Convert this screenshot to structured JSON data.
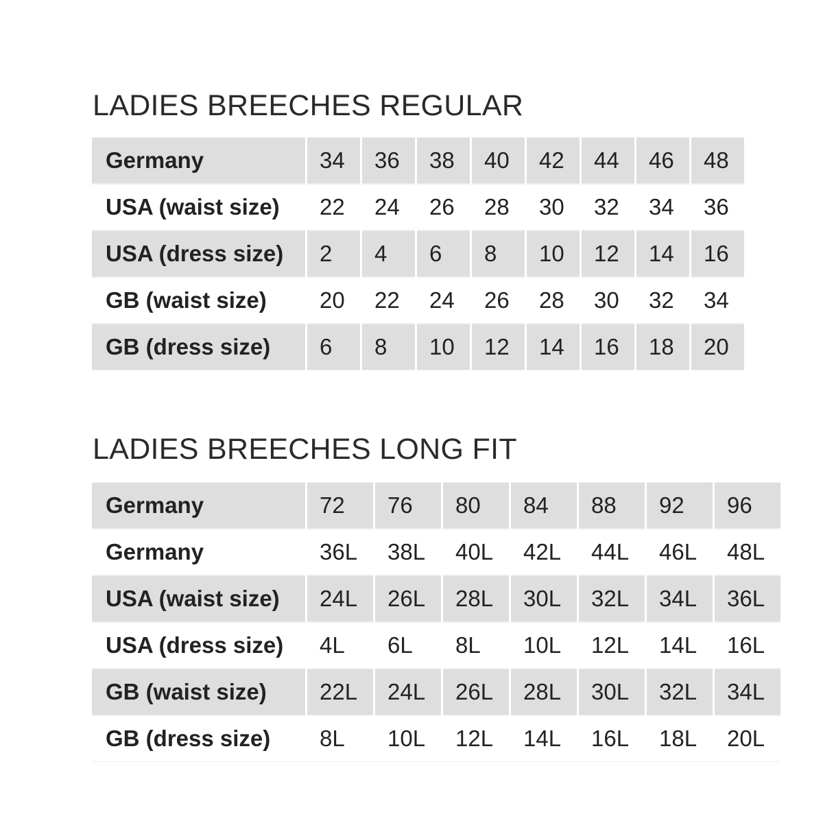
{
  "tables": [
    {
      "title": "LADIES BREECHES REGULAR",
      "rows": [
        {
          "label": "Germany",
          "values": [
            "34",
            "36",
            "38",
            "40",
            "42",
            "44",
            "46",
            "48"
          ]
        },
        {
          "label": "USA (waist size)",
          "values": [
            "22",
            "24",
            "26",
            "28",
            "30",
            "32",
            "34",
            "36"
          ]
        },
        {
          "label": "USA (dress size)",
          "values": [
            "2",
            "4",
            "6",
            "8",
            "10",
            "12",
            "14",
            "16"
          ]
        },
        {
          "label": "GB (waist size)",
          "values": [
            "20",
            "22",
            "24",
            "26",
            "28",
            "30",
            "32",
            "34"
          ]
        },
        {
          "label": "GB (dress size)",
          "values": [
            "6",
            "8",
            "10",
            "12",
            "14",
            "16",
            "18",
            "20"
          ]
        }
      ]
    },
    {
      "title": "LADIES BREECHES LONG FIT",
      "rows": [
        {
          "label": "Germany",
          "values": [
            "72",
            "76",
            "80",
            "84",
            "88",
            "92",
            "96"
          ]
        },
        {
          "label": "Germany",
          "values": [
            "36L",
            "38L",
            "40L",
            "42L",
            "44L",
            "46L",
            "48L"
          ]
        },
        {
          "label": "USA (waist size)",
          "values": [
            "24L",
            "26L",
            "28L",
            "30L",
            "32L",
            "34L",
            "36L"
          ]
        },
        {
          "label": "USA (dress size)",
          "values": [
            "4L",
            "6L",
            "8L",
            "10L",
            "12L",
            "14L",
            "16L"
          ]
        },
        {
          "label": "GB (waist size)",
          "values": [
            "22L",
            "24L",
            "26L",
            "28L",
            "30L",
            "32L",
            "34L"
          ]
        },
        {
          "label": "GB (dress size)",
          "values": [
            "8L",
            "10L",
            "12L",
            "14L",
            "16L",
            "18L",
            "20L"
          ]
        }
      ]
    }
  ]
}
